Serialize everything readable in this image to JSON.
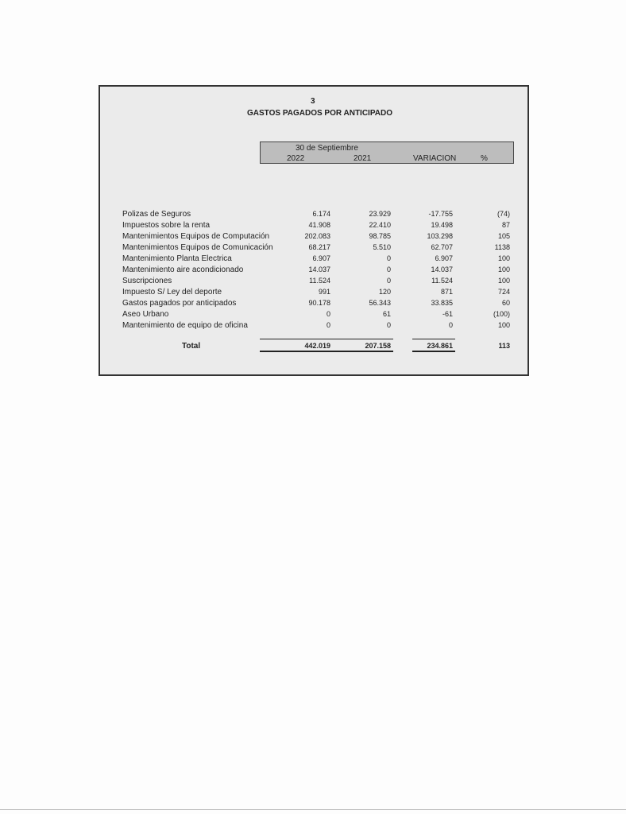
{
  "note_number": "3",
  "title": "GASTOS PAGADOS POR ANTICIPADO",
  "header": {
    "period": "30 de Septiembre",
    "col_2022": "2022",
    "col_2021": "2021",
    "col_variacion": "VARIACION",
    "col_pct": "%"
  },
  "rows": [
    {
      "label": "Polizas de Seguros",
      "y2022": "6.174",
      "y2021": "23.929",
      "var": "-17.755",
      "pct": "(74)"
    },
    {
      "label": "Impuestos sobre la renta",
      "y2022": "41.908",
      "y2021": "22.410",
      "var": "19.498",
      "pct": "87"
    },
    {
      "label": "Mantenimientos Equipos de Computación",
      "y2022": "202.083",
      "y2021": "98.785",
      "var": "103.298",
      "pct": "105"
    },
    {
      "label": "Mantenimientos Equipos de Comunicación",
      "y2022": "68.217",
      "y2021": "5.510",
      "var": "62.707",
      "pct": "1138"
    },
    {
      "label": "Mantenimiento Planta Electrica",
      "y2022": "6.907",
      "y2021": "0",
      "var": "6.907",
      "pct": "100"
    },
    {
      "label": "Mantenimiento aire acondicionado",
      "y2022": "14.037",
      "y2021": "0",
      "var": "14.037",
      "pct": "100"
    },
    {
      "label": "Suscripciones",
      "y2022": "11.524",
      "y2021": "0",
      "var": "11.524",
      "pct": "100"
    },
    {
      "label": "Impuesto S/ Ley del deporte",
      "y2022": "991",
      "y2021": "120",
      "var": "871",
      "pct": "724"
    },
    {
      "label": "Gastos pagados por anticipados",
      "y2022": "90.178",
      "y2021": "56.343",
      "var": "33.835",
      "pct": "60"
    },
    {
      "label": "Aseo Urbano",
      "y2022": "0",
      "y2021": "61",
      "var": "-61",
      "pct": "(100)"
    },
    {
      "label": "Mantenimiento de equipo de oficina",
      "y2022": "0",
      "y2021": "0",
      "var": "0",
      "pct": "100"
    }
  ],
  "total": {
    "label": "Total",
    "y2022": "442.019",
    "y2021": "207.158",
    "var": "234.861",
    "pct": "113"
  }
}
